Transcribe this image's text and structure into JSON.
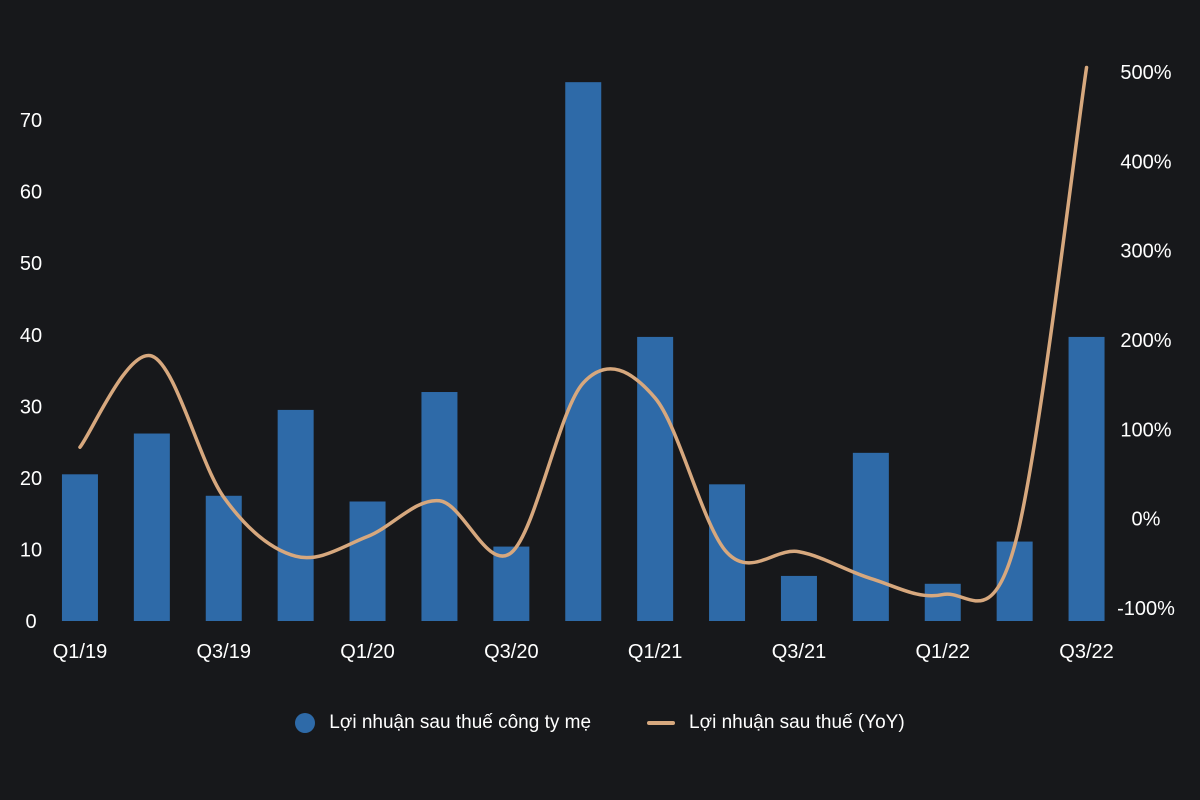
{
  "chart_data": {
    "type": "bar",
    "categories": [
      "Q1/19",
      "Q2/19",
      "Q3/19",
      "Q4/19",
      "Q1/20",
      "Q2/20",
      "Q3/20",
      "Q4/20",
      "Q1/21",
      "Q2/21",
      "Q3/21",
      "Q4/21",
      "Q1/22",
      "Q2/22",
      "Q3/22"
    ],
    "x_tick_labels": [
      "Q1/19",
      "Q3/19",
      "Q1/20",
      "Q3/20",
      "Q1/21",
      "Q3/21",
      "Q1/22",
      "Q3/22"
    ],
    "series": [
      {
        "name": "Lợi nhuận sau thuế công ty mẹ",
        "type": "bar",
        "axis": "left",
        "color": "#2e6aa8",
        "values": [
          20.5,
          26.2,
          17.5,
          29.5,
          16.7,
          32.0,
          10.4,
          75.3,
          39.7,
          19.1,
          6.3,
          23.5,
          5.2,
          11.1,
          39.7
        ]
      },
      {
        "name": "Lợi nhuận sau thuế (YoY)",
        "type": "line",
        "axis": "right",
        "color": "#d7a87e",
        "values": [
          80,
          182,
          24,
          -42,
          -20,
          20,
          -38,
          152,
          135,
          -38,
          -37,
          -67,
          -85,
          -30,
          505
        ]
      }
    ],
    "y_left": {
      "min": 0,
      "max": 77,
      "ticks": [
        0,
        10,
        20,
        30,
        40,
        50,
        60,
        70
      ]
    },
    "y_right": {
      "min": -100,
      "max": 500,
      "ticks": [
        -100,
        0,
        100,
        200,
        300,
        400,
        500
      ],
      "tick_labels": [
        "-100%",
        "0%",
        "100%",
        "200%",
        "300%",
        "400%",
        "500%"
      ]
    },
    "grid": false,
    "legend_position": "bottom-center"
  }
}
